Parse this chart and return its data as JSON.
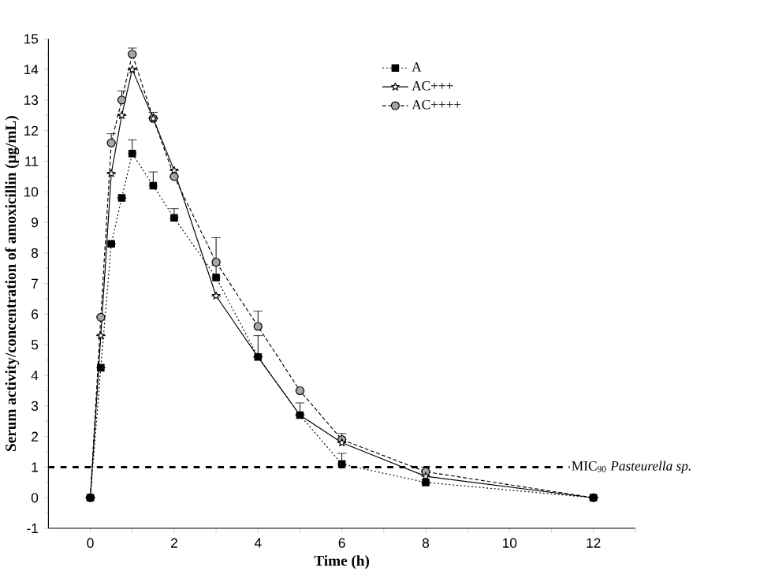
{
  "chart_data": {
    "type": "line",
    "xlabel": "Time (h)",
    "ylabel": "Serum activity/concentration of amoxicillin (μg/mL)",
    "x": [
      0,
      0.25,
      0.5,
      0.75,
      1,
      1.5,
      2,
      3,
      4,
      5,
      6,
      8,
      12
    ],
    "series": [
      {
        "name": "A",
        "color": "#000000",
        "marker": "square",
        "line_style": "dotted",
        "values": [
          0,
          4.25,
          8.3,
          9.8,
          11.25,
          10.2,
          9.15,
          7.2,
          4.6,
          2.7,
          1.1,
          0.5,
          0
        ],
        "errors": [
          null,
          null,
          null,
          null,
          [
            11.25,
            11.7
          ],
          [
            10.2,
            10.65
          ],
          [
            9.15,
            9.45
          ],
          [
            7.2,
            7.6
          ],
          null,
          [
            2.7,
            3.1
          ],
          [
            1.1,
            1.45
          ],
          null,
          null
        ]
      },
      {
        "name": "AC+++",
        "color": "#000000",
        "marker": "star",
        "line_style": "solid",
        "values": [
          0,
          5.3,
          10.6,
          12.5,
          14.0,
          12.4,
          10.7,
          6.6,
          4.6,
          2.7,
          1.8,
          0.7,
          0
        ],
        "errors": [
          null,
          null,
          null,
          null,
          null,
          [
            12.4,
            12.6
          ],
          null,
          null,
          [
            4.6,
            5.3
          ],
          null,
          null,
          [
            0.7,
            1.0
          ],
          null
        ]
      },
      {
        "name": "AC++++",
        "color": "#000000",
        "marker": "circle",
        "line_style": "dashed",
        "values": [
          0,
          5.9,
          11.6,
          13.0,
          14.5,
          12.4,
          10.5,
          7.7,
          5.6,
          3.5,
          1.9,
          0.85,
          0
        ],
        "errors": [
          null,
          null,
          [
            11.6,
            11.9
          ],
          [
            13.0,
            13.3
          ],
          [
            14.5,
            14.7
          ],
          null,
          null,
          [
            7.7,
            8.5
          ],
          [
            5.6,
            6.1
          ],
          null,
          [
            1.9,
            2.1
          ],
          null,
          null
        ]
      }
    ],
    "xlim": [
      -1,
      13
    ],
    "xticks": [
      0,
      {
        "value": 1,
        "label": null
      },
      2,
      {
        "value": 3,
        "label": null
      },
      4,
      {
        "value": 5,
        "label": null
      },
      6,
      {
        "value": 7,
        "label": null
      },
      8,
      {
        "value": 9,
        "label": null
      },
      10,
      {
        "value": 11,
        "label": null
      },
      12,
      {
        "value": 13,
        "label": null
      }
    ],
    "ylim": [
      -1,
      15
    ],
    "yticks": [
      -1,
      0,
      1,
      2,
      3,
      4,
      5,
      6,
      7,
      8,
      9,
      10,
      11,
      12,
      13,
      14,
      15
    ],
    "ref_lines": [
      {
        "axis": "y",
        "value": 1,
        "label": "MIC$_{90}$ *Pasteurella sp.*",
        "line_style": "dashed",
        "color": "#000000"
      }
    ],
    "legend": "top right",
    "grid": false
  }
}
